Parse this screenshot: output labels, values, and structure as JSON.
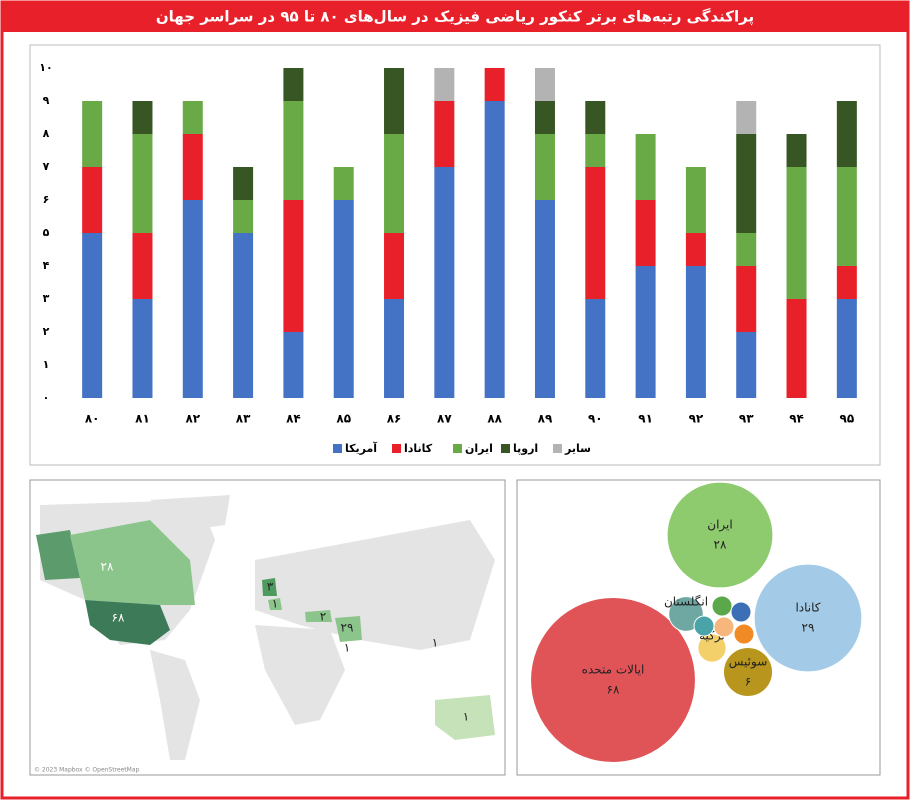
{
  "chart_data": [
    {
      "type": "bar",
      "stacked": true,
      "title": "پراکندگی رتبه‌های برتر کنکور ریاضی فیزیک در سال‌های ۸۰ تا ۹۵ در سراسر جهان",
      "categories": [
        "۸۰",
        "۸۱",
        "۸۲",
        "۸۳",
        "۸۴",
        "۸۵",
        "۸۶",
        "۸۷",
        "۸۸",
        "۸۹",
        "۹۰",
        "۹۱",
        "۹۲",
        "۹۳",
        "۹۴",
        "۹۵"
      ],
      "series": [
        {
          "name": "آمریکا",
          "color": "#4472c4",
          "values": [
            5,
            3,
            6,
            5,
            2,
            6,
            3,
            7,
            9,
            6,
            3,
            4,
            4,
            2,
            0,
            3
          ]
        },
        {
          "name": "کانادا",
          "color": "#e8202a",
          "values": [
            2,
            2,
            2,
            0,
            4,
            0,
            2,
            2,
            1,
            0,
            4,
            2,
            1,
            2,
            3,
            1
          ]
        },
        {
          "name": "ایران",
          "color": "#6aaa46",
          "values": [
            2,
            3,
            1,
            1,
            3,
            1,
            3,
            0,
            0,
            2,
            1,
            2,
            2,
            1,
            4,
            3
          ]
        },
        {
          "name": "اروپا",
          "color": "#375623",
          "values": [
            0,
            1,
            0,
            1,
            1,
            0,
            2,
            0,
            0,
            1,
            1,
            0,
            0,
            3,
            1,
            2
          ]
        },
        {
          "name": "سایر",
          "color": "#b3b3b3",
          "values": [
            0,
            0,
            0,
            0,
            0,
            0,
            0,
            1,
            0,
            1,
            0,
            0,
            0,
            1,
            0,
            0
          ]
        }
      ],
      "ylim": [
        0,
        10
      ],
      "yticks": [
        {
          "value": 0,
          "label": "۰"
        },
        {
          "value": 1,
          "label": "۱"
        },
        {
          "value": 2,
          "label": "۲"
        },
        {
          "value": 3,
          "label": "۳"
        },
        {
          "value": 4,
          "label": "۴"
        },
        {
          "value": 5,
          "label": "۵"
        },
        {
          "value": 6,
          "label": "۶"
        },
        {
          "value": 7,
          "label": "۷"
        },
        {
          "value": 8,
          "label": "۸"
        },
        {
          "value": 9,
          "label": "۹"
        },
        {
          "value": 10,
          "label": "۱۰"
        }
      ],
      "grid": false,
      "legend": "bottom"
    },
    {
      "type": "bubble",
      "categories": [
        "ایالات متحده",
        "کانادا",
        "ایران",
        "سوئیس",
        "انگلستان",
        "ترکیه",
        null,
        null,
        null,
        null,
        null
      ],
      "values": [
        68,
        29,
        28,
        6,
        3,
        2,
        1,
        1,
        1,
        1,
        1
      ],
      "value_labels": [
        "۶۸",
        "۲۹",
        "۲۸",
        "۶",
        null,
        null,
        null,
        null,
        null,
        null,
        null
      ],
      "colors": [
        "#e05458",
        "#a3cbe7",
        "#8dcb6e",
        "#b8961d",
        "#6fa7a3",
        "#f4d06b",
        "#5aa84a",
        "#3c6fb6",
        "#f08a24",
        "#f7b77c",
        "#49a4a9"
      ]
    }
  ],
  "map": {
    "labels": [
      "۲۸",
      "۶۸",
      "۳",
      "۱",
      "۲",
      "۲۹",
      "۱",
      "۱",
      "۱"
    ],
    "credit": "© 2023 Mapbox © OpenStreetMap"
  }
}
